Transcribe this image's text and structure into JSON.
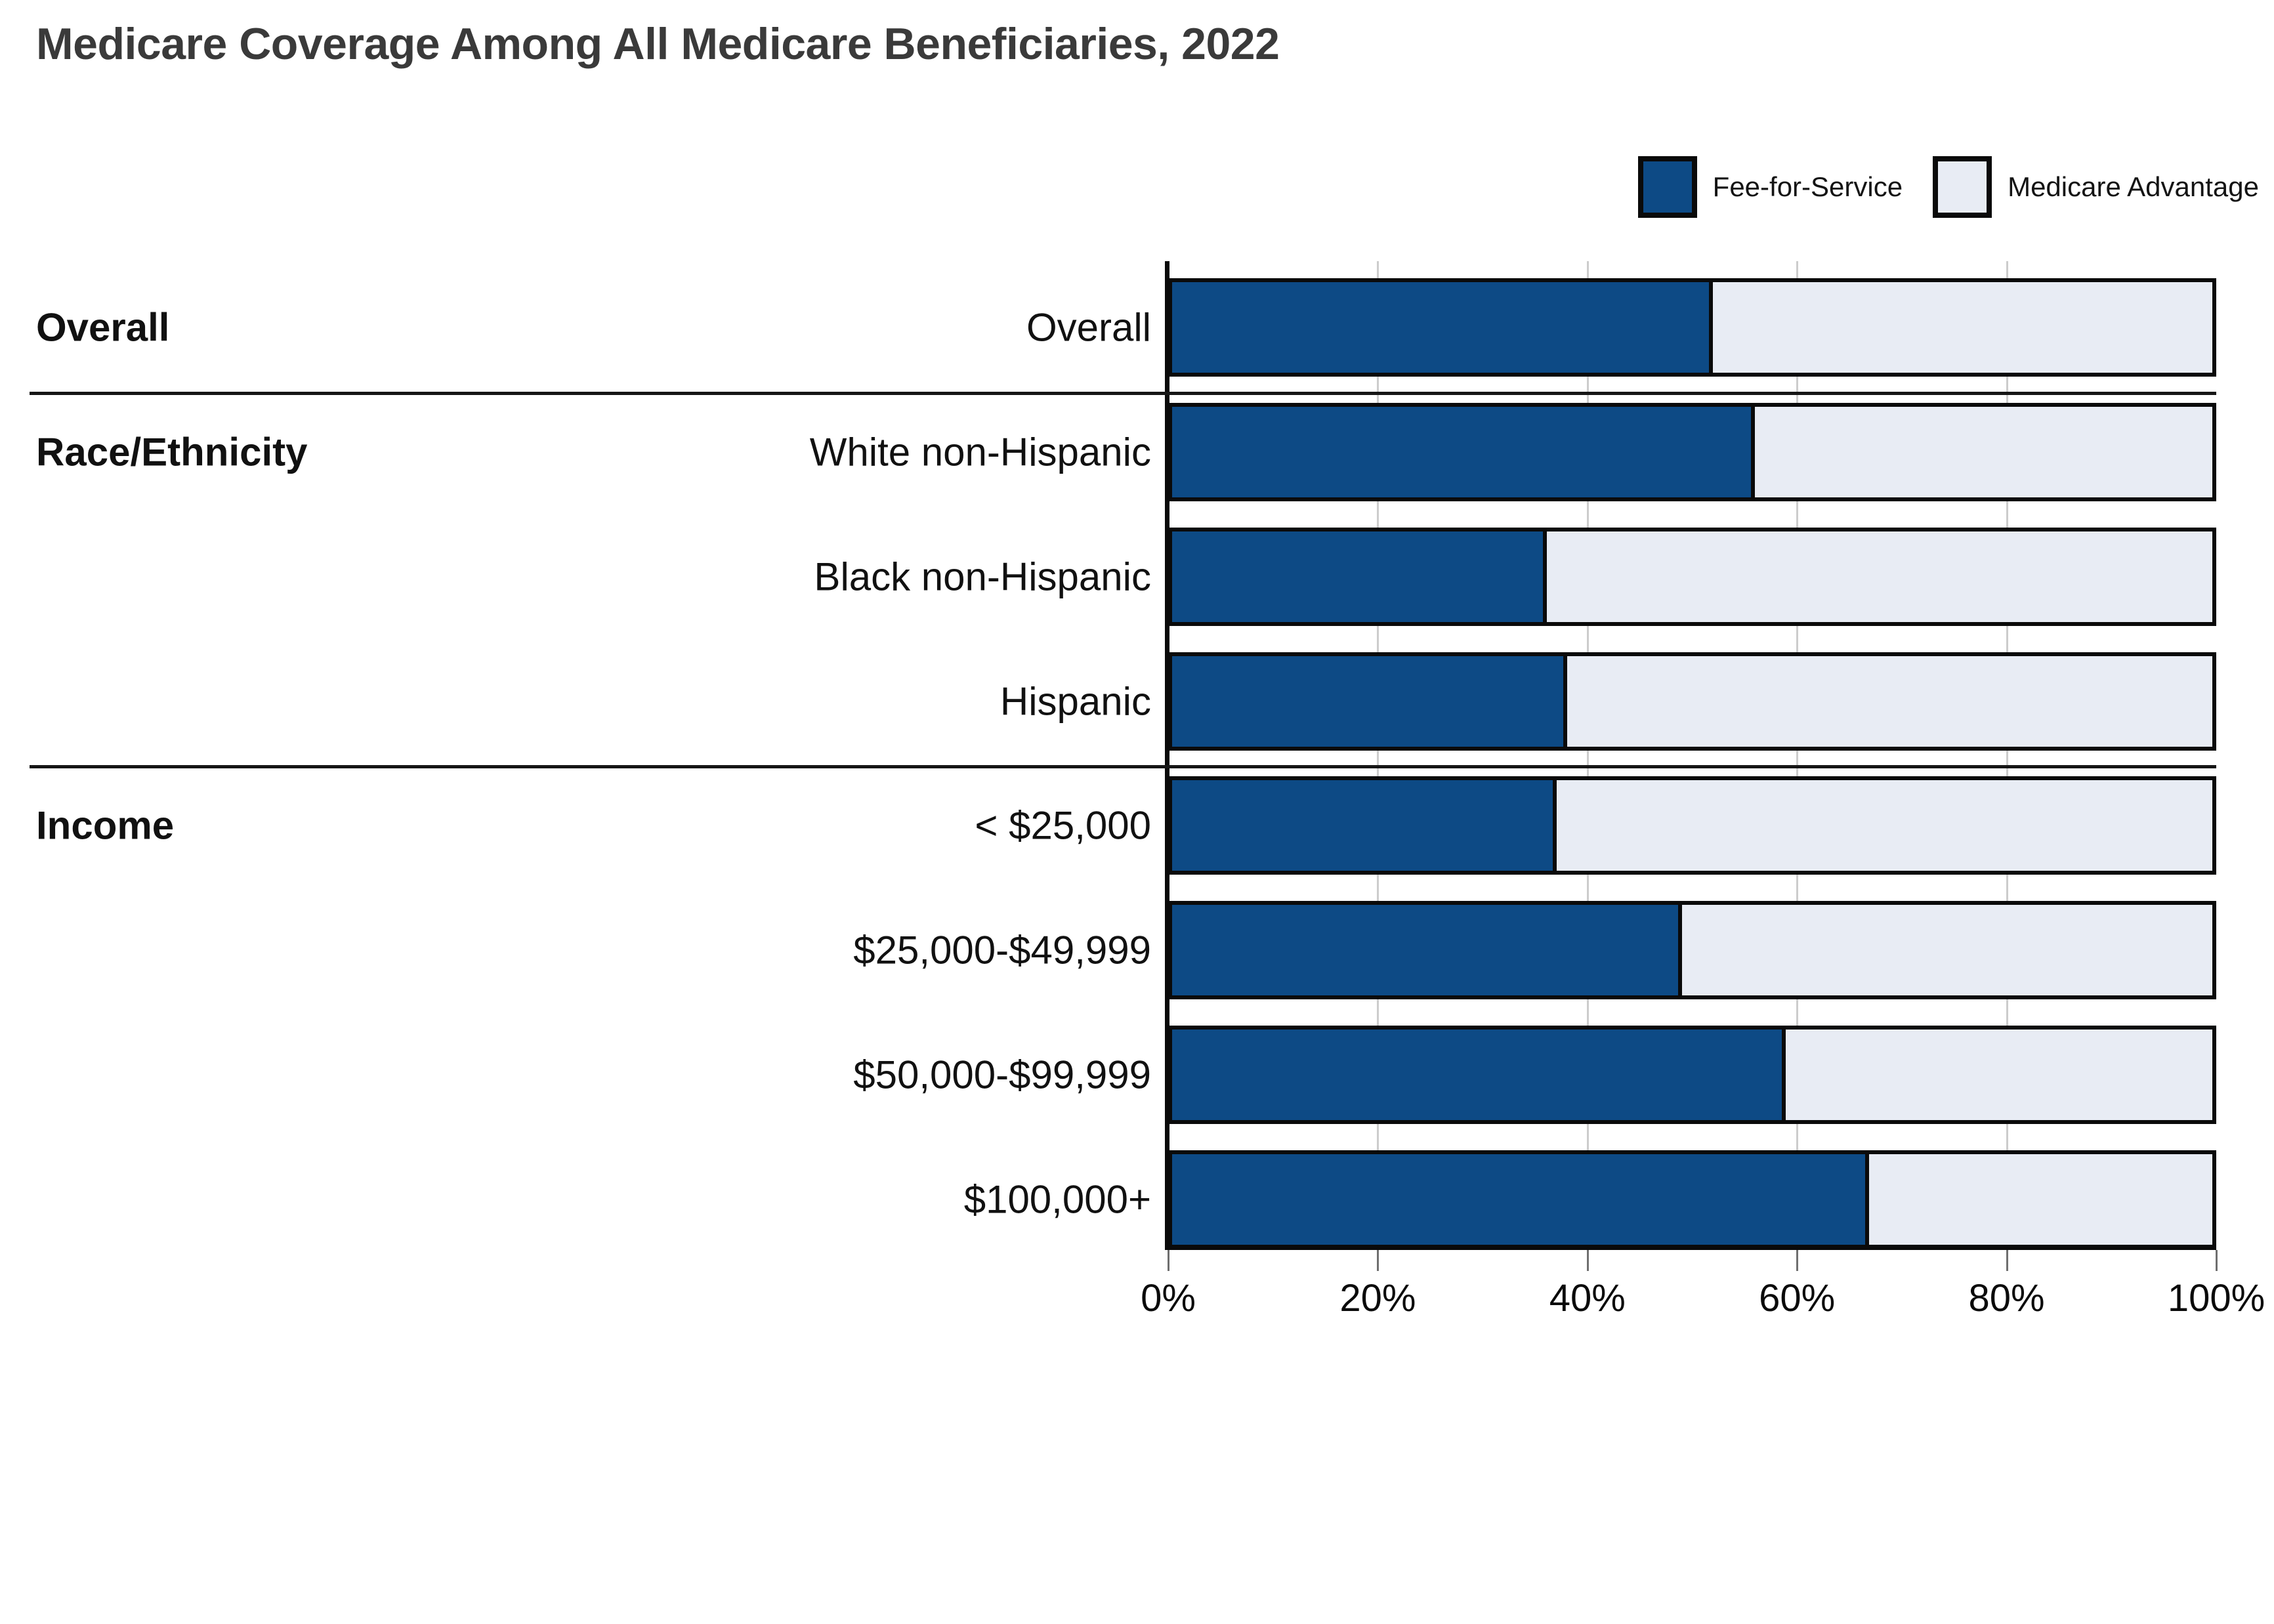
{
  "title": "Medicare Coverage Among All Medicare Beneficiaries, 2022",
  "legend": {
    "items": [
      {
        "label": "Fee-for-Service",
        "color": "#0d4a85"
      },
      {
        "label": "Medicare Advantage",
        "color": "#e8ecf4"
      }
    ]
  },
  "row_groups": [
    {
      "header": "Overall",
      "first_category_index": 0
    },
    {
      "header": "Race/Ethnicity",
      "first_category_index": 1
    },
    {
      "header": "Income",
      "first_category_index": 4
    }
  ],
  "chart_data": {
    "type": "bar",
    "orientation": "horizontal",
    "stacked": true,
    "title": "Medicare Coverage Among All Medicare Beneficiaries, 2022",
    "categories": [
      "Overall",
      "White non-Hispanic",
      "Black non-Hispanic",
      "Hispanic",
      "< $25,000",
      "$25,000-$49,999",
      "$50,000-$99,999",
      "$100,000+"
    ],
    "category_groups": [
      {
        "label": "Overall",
        "categories": [
          "Overall"
        ]
      },
      {
        "label": "Race/Ethnicity",
        "categories": [
          "White non-Hispanic",
          "Black non-Hispanic",
          "Hispanic"
        ]
      },
      {
        "label": "Income",
        "categories": [
          "< $25,000",
          "$25,000-$49,999",
          "$50,000-$99,999",
          "$100,000+"
        ]
      }
    ],
    "series": [
      {
        "name": "Fee-for-Service",
        "color": "#0d4a85",
        "values": [
          52,
          56,
          36,
          38,
          37,
          49,
          59,
          67
        ]
      },
      {
        "name": "Medicare Advantage",
        "color": "#e8ecf4",
        "values": [
          48,
          44,
          64,
          62,
          63,
          51,
          41,
          33
        ]
      }
    ],
    "unit": "%",
    "xlim": [
      0,
      100
    ],
    "xticks": [
      "0%",
      "20%",
      "40%",
      "60%",
      "80%",
      "100%"
    ],
    "grid": true,
    "legend_position": "top-right"
  }
}
